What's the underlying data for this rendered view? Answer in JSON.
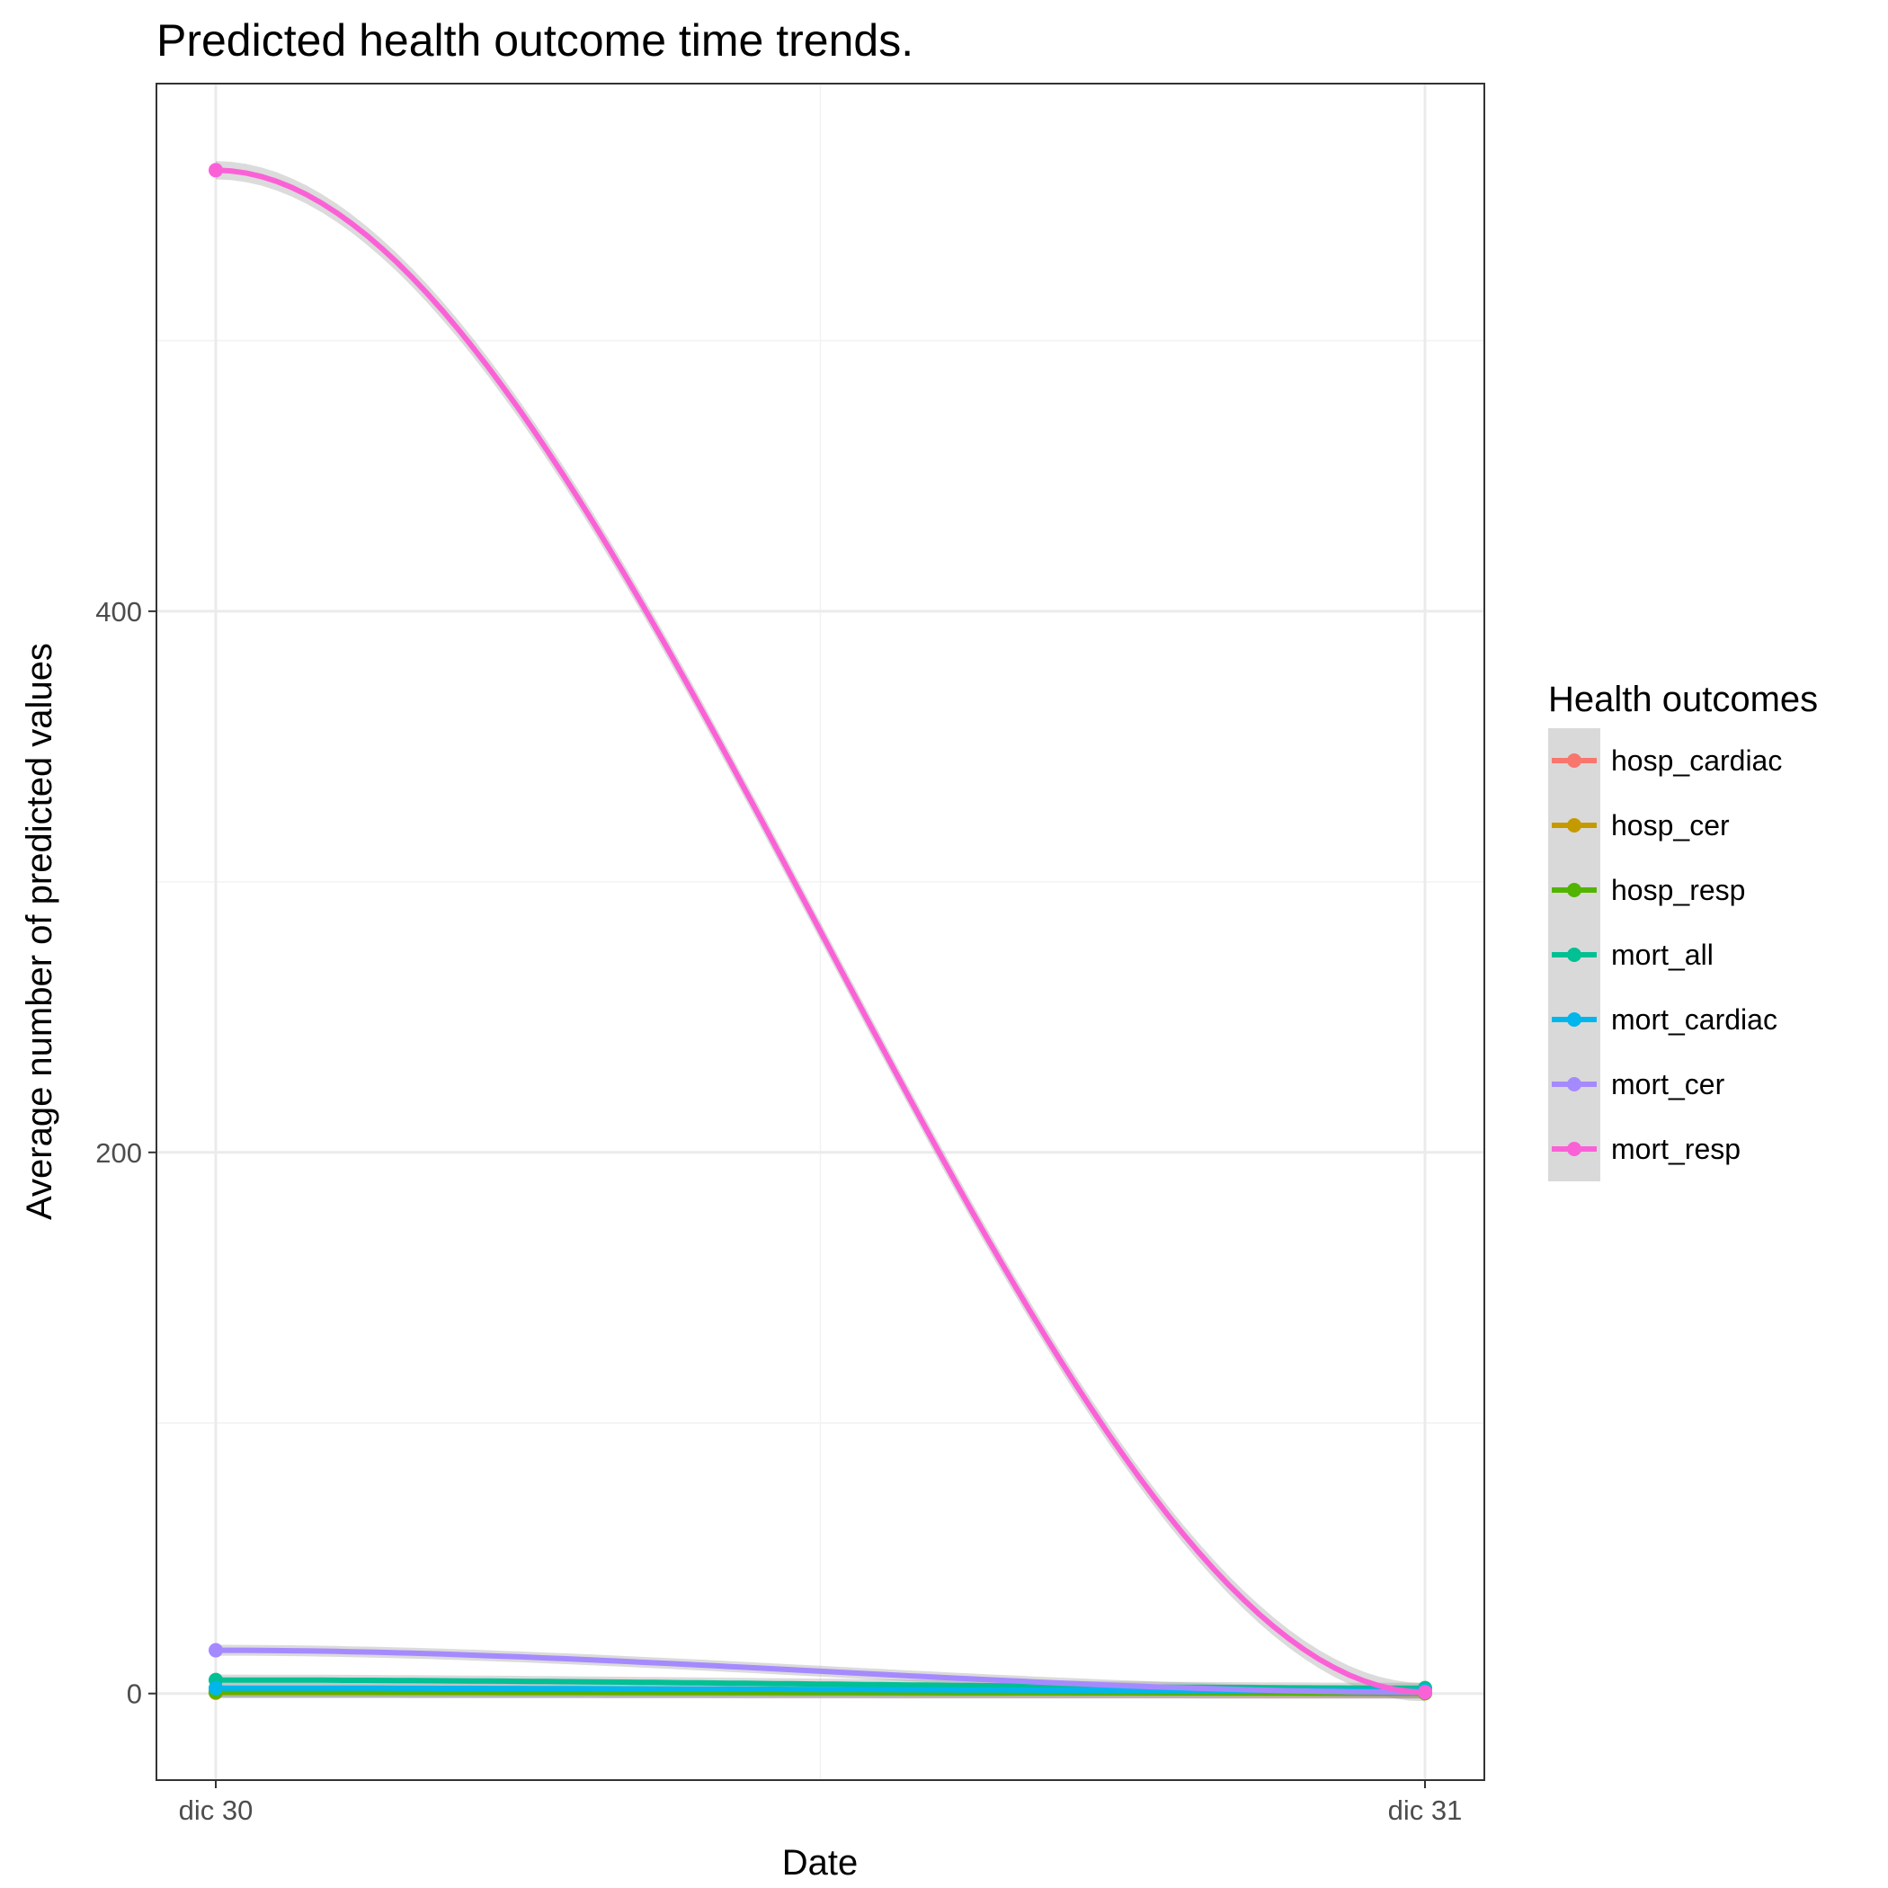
{
  "chart_data": {
    "type": "line",
    "title": "Predicted health outcome time trends.",
    "xlabel": "Date",
    "ylabel": "Average number of predicted values",
    "x": [
      "dic 30",
      "dic 31"
    ],
    "ylim": [
      -32,
      595
    ],
    "y_ticks": [
      0,
      200,
      400
    ],
    "y_minor_ticks": [
      100,
      300,
      500
    ],
    "grid": true,
    "smoothed": true,
    "confidence_band": true,
    "legend": {
      "title": "Health outcomes",
      "placement": "right"
    },
    "series": [
      {
        "name": "hosp_cardiac",
        "color": "#F8766D",
        "values": [
          0.4,
          0.2
        ]
      },
      {
        "name": "hosp_cer",
        "color": "#C49A00",
        "values": [
          0.3,
          0.1
        ]
      },
      {
        "name": "hosp_resp",
        "color": "#53B400",
        "values": [
          0.6,
          0.2
        ]
      },
      {
        "name": "mort_all",
        "color": "#00C094",
        "values": [
          5,
          2
        ]
      },
      {
        "name": "mort_cardiac",
        "color": "#00B6EB",
        "values": [
          2,
          1
        ]
      },
      {
        "name": "mort_cer",
        "color": "#A58AFF",
        "values": [
          16,
          0.5
        ]
      },
      {
        "name": "mort_resp",
        "color": "#FB61D7",
        "values": [
          563,
          0.5
        ]
      }
    ]
  }
}
